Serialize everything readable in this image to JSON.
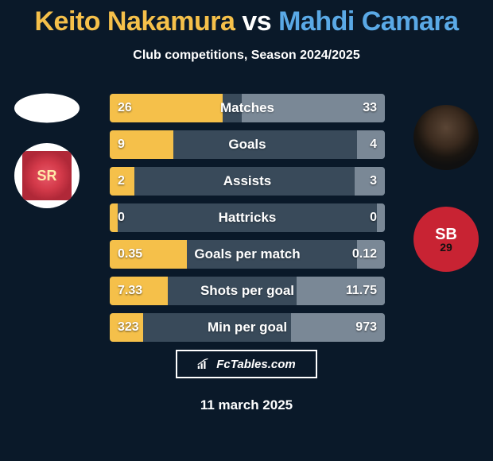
{
  "title_a": "Keito Nakamura",
  "title_vs": "vs",
  "title_b": "Mahdi Camara",
  "title_color_a": "#f5c04a",
  "title_color_vs": "#ffffff",
  "title_color_b": "#5aa9e6",
  "subtitle": "Club competitions, Season 2024/2025",
  "background_color": "#0a1929",
  "bar_defs": {
    "left_color": "#f5c04a",
    "right_color": "#7a8896",
    "base_color": "#394a5a",
    "height": 36,
    "gap": 10,
    "fontsize_label": 17,
    "fontsize_value": 16
  },
  "bars": [
    {
      "label": "Matches",
      "left": "26",
      "right": "33",
      "l_pct": 41,
      "r_pct": 52
    },
    {
      "label": "Goals",
      "left": "9",
      "right": "4",
      "l_pct": 23,
      "r_pct": 10
    },
    {
      "label": "Assists",
      "left": "2",
      "right": "3",
      "l_pct": 9,
      "r_pct": 11
    },
    {
      "label": "Hattricks",
      "left": "0",
      "right": "0",
      "l_pct": 3,
      "r_pct": 3
    },
    {
      "label": "Goals per match",
      "left": "0.35",
      "right": "0.12",
      "l_pct": 28,
      "r_pct": 10
    },
    {
      "label": "Shots per goal",
      "left": "7.33",
      "right": "11.75",
      "l_pct": 21,
      "r_pct": 32
    },
    {
      "label": "Min per goal",
      "left": "323",
      "right": "973",
      "l_pct": 12,
      "r_pct": 34
    }
  ],
  "badge_left_text": "SR",
  "badge_right_text": "SB",
  "badge_right_sub": "29",
  "footer_text": "FcTables.com",
  "date": "11 march 2025"
}
